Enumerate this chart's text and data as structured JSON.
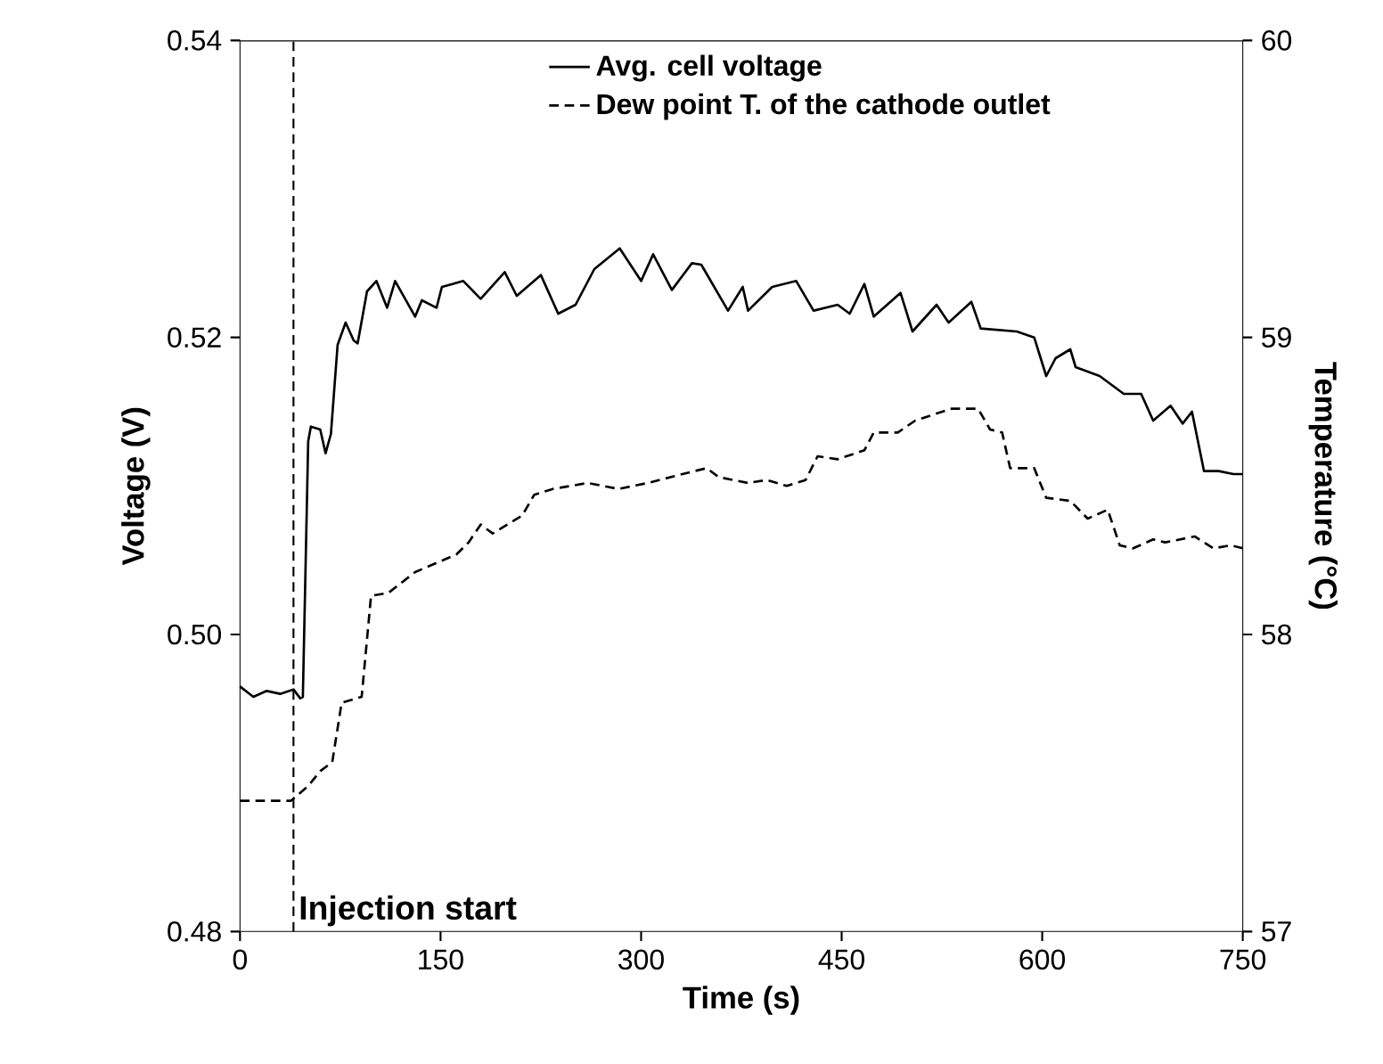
{
  "chart_data": {
    "type": "line",
    "xlabel": "Time (s)",
    "ylabel": "Voltage (V)",
    "y2label": "Temperature (°C)",
    "xlim": [
      0,
      750
    ],
    "xticks": [
      0,
      150,
      300,
      450,
      600,
      750
    ],
    "ylim": [
      0.48,
      0.54
    ],
    "yticks": [
      0.48,
      {
        "value": 0.5,
        "label": "0.50"
      },
      0.52,
      0.54
    ],
    "y2lim": [
      57,
      60
    ],
    "y2ticks": [
      57,
      58,
      59,
      60
    ],
    "legend": "top",
    "marker": "none",
    "series": [
      {
        "name": "Avg. cell voltage",
        "color": "#000000",
        "line_style": "solid",
        "axis": "y",
        "x": [
          0,
          10,
          20,
          30,
          40,
          45,
          47,
          51,
          53,
          60,
          64,
          68,
          73,
          79,
          85,
          88,
          95,
          102,
          110,
          116,
          131,
          136,
          147,
          151,
          167,
          180,
          198,
          207,
          225,
          238,
          251,
          265,
          284,
          300,
          309,
          323,
          338,
          345,
          365,
          376,
          380,
          398,
          416,
          429,
          447,
          456,
          467,
          474,
          494,
          503,
          521,
          530,
          547,
          554,
          581,
          594,
          603,
          610,
          621,
          625,
          643,
          661,
          674,
          683,
          696,
          705,
          712,
          721,
          732,
          743,
          750
        ],
        "values": [
          0.4965,
          0.4958,
          0.4962,
          0.496,
          0.4963,
          0.4957,
          0.4958,
          0.513,
          0.514,
          0.5138,
          0.5122,
          0.5135,
          0.5195,
          0.521,
          0.5198,
          0.5196,
          0.5231,
          0.5238,
          0.522,
          0.5238,
          0.5214,
          0.5225,
          0.522,
          0.5234,
          0.5238,
          0.5226,
          0.5244,
          0.5228,
          0.5242,
          0.5216,
          0.5222,
          0.5246,
          0.526,
          0.5238,
          0.5256,
          0.5232,
          0.525,
          0.5249,
          0.5218,
          0.5234,
          0.5218,
          0.5234,
          0.5238,
          0.5218,
          0.5222,
          0.5216,
          0.5236,
          0.5214,
          0.523,
          0.5204,
          0.5222,
          0.521,
          0.5224,
          0.5206,
          0.5204,
          0.52,
          0.5174,
          0.5186,
          0.5192,
          0.518,
          0.5174,
          0.5162,
          0.5162,
          0.5144,
          0.5154,
          0.5142,
          0.515,
          0.511,
          0.511,
          0.5108,
          0.5108
        ]
      },
      {
        "name": "Dew point T. of the cathode outlet",
        "color": "#000000",
        "line_style": "dashed",
        "axis": "y2",
        "x": [
          0,
          20,
          38,
          51,
          60,
          69,
          76,
          91,
          98,
          111,
          131,
          162,
          171,
          180,
          189,
          211,
          220,
          234,
          260,
          283,
          305,
          331,
          349,
          358,
          380,
          394,
          409,
          423,
          432,
          447,
          467,
          474,
          492,
          505,
          532,
          552,
          561,
          570,
          576,
          594,
          603,
          621,
          634,
          649,
          658,
          668,
          683,
          692,
          714,
          728,
          741,
          750
        ],
        "values": [
          57.44,
          57.44,
          57.44,
          57.49,
          57.54,
          57.57,
          57.77,
          57.79,
          58.13,
          58.14,
          58.21,
          58.27,
          58.31,
          58.37,
          58.34,
          58.4,
          58.47,
          58.49,
          58.51,
          58.49,
          58.51,
          58.54,
          58.56,
          58.53,
          58.51,
          58.52,
          58.5,
          58.52,
          58.6,
          58.59,
          58.62,
          58.68,
          58.68,
          58.72,
          58.76,
          58.76,
          58.69,
          58.68,
          58.56,
          58.56,
          58.46,
          58.45,
          58.39,
          58.42,
          58.3,
          58.29,
          58.32,
          58.31,
          58.33,
          58.29,
          58.3,
          58.29
        ]
      }
    ],
    "ref_lines": [
      {
        "axis": "x",
        "value": 40,
        "label": "Injection start",
        "line_style": "dashed",
        "color": "#000000"
      }
    ]
  }
}
